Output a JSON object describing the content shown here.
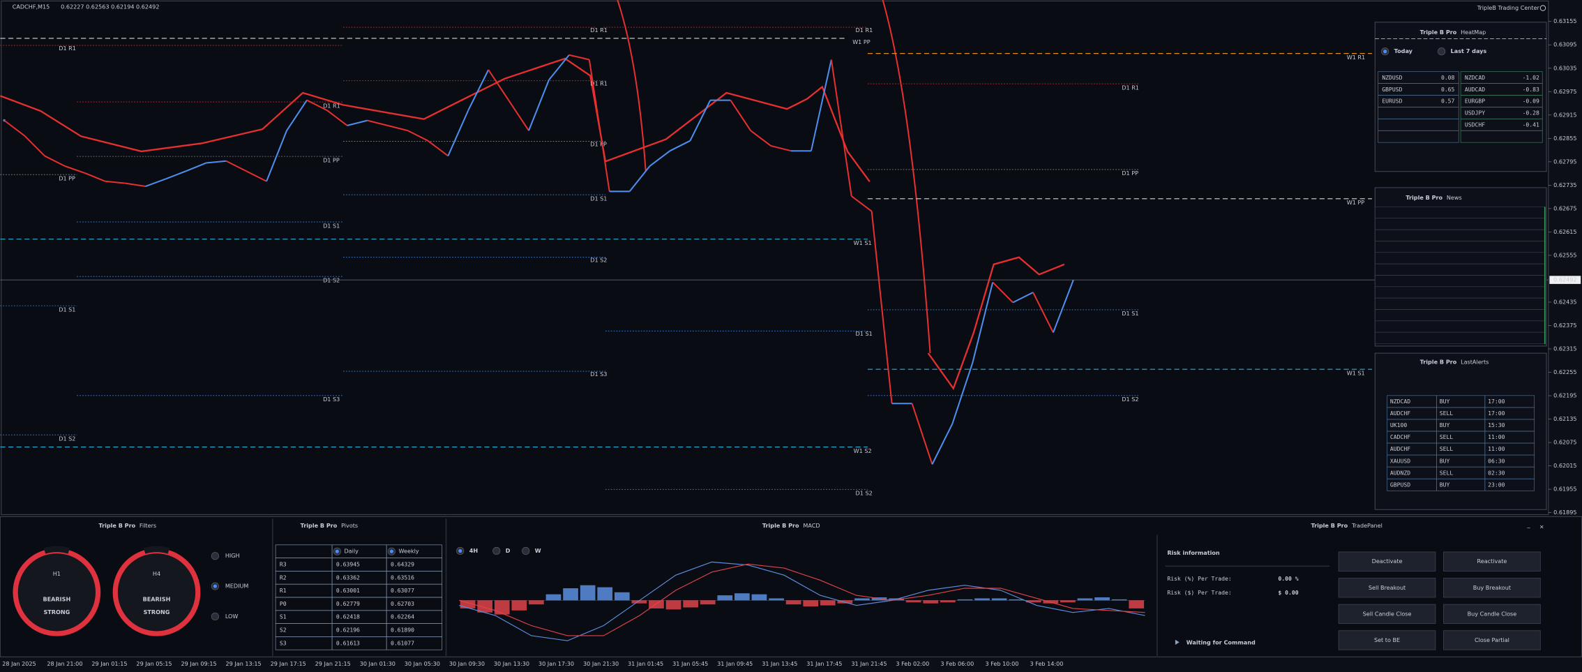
{
  "header": {
    "symbol": "CADCHF,M15",
    "ohlc": "0.62227 0.62563 0.62194 0.62492",
    "broker": "TripleB Trading Center"
  },
  "chart_data": {
    "type": "line",
    "values": [
      0.62901,
      0.62862,
      0.6281,
      0.62784,
      0.62766,
      0.62745,
      0.6274,
      0.62732,
      0.62751,
      0.62771,
      0.62792,
      0.62797,
      0.62771,
      0.62745,
      0.62875,
      0.62953,
      0.62927,
      0.62888,
      0.62901,
      0.62888,
      0.62875,
      0.62849,
      0.6281,
      0.62927,
      0.63031,
      0.62953,
      0.62875,
      0.63005,
      0.63069,
      0.63057,
      0.62719,
      0.62719,
      0.62784,
      0.62823,
      0.62849,
      0.62953,
      0.62953,
      0.62875,
      0.62836,
      0.62823,
      0.62823,
      0.63057,
      0.62707,
      0.62668,
      0.62175,
      0.62175,
      0.62019,
      0.62123,
      0.62279,
      0.62486,
      0.62434,
      0.6246,
      0.62357,
      0.62492
    ],
    "ylim": [
      0.6189,
      0.6321
    ],
    "yticks": [
      0.63155,
      0.63095,
      0.63035,
      0.62975,
      0.62915,
      0.62855,
      0.62795,
      0.62735,
      0.62675,
      0.62615,
      0.62555,
      0.62435,
      0.62375,
      0.62315,
      0.62255,
      0.62195,
      0.62135,
      0.62075,
      0.62015,
      0.61955,
      0.61895
    ],
    "current_price": 0.62492,
    "up_color": "#4d8fef",
    "down_color": "#e5302f",
    "x_labels": [
      "28 Jan 2025",
      "28 Jan 21:00",
      "29 Jan 01:15",
      "29 Jan 05:15",
      "29 Jan 09:15",
      "29 Jan 13:15",
      "29 Jan 17:15",
      "29 Jan 21:15",
      "30 Jan 01:30",
      "30 Jan 05:30",
      "30 Jan 09:30",
      "30 Jan 13:30",
      "30 Jan 17:30",
      "30 Jan 21:30",
      "31 Jan 01:45",
      "31 Jan 05:45",
      "31 Jan 09:45",
      "31 Jan 13:45",
      "31 Jan 17:45",
      "31 Jan 21:45",
      "3 Feb 02:00",
      "3 Feb 06:00",
      "3 Feb 10:00",
      "3 Feb 14:00"
    ],
    "levels": [
      "D1 R1",
      "D1 R1",
      "D1 R1",
      "W1 PP",
      "W1 R1",
      "D1 R1",
      "D1 R1",
      "D1 R1",
      "D1 PP",
      "D1 PP",
      "D1 PP",
      "D1 PP",
      "W1 PP",
      "D1 S1",
      "D1 S1",
      "W1 S1",
      "D1 S2",
      "D1 S2",
      "D1 S1",
      "D1 S1",
      "D1 S1",
      "W1 S1",
      "D1 S3",
      "D1 S3",
      "D1 S2",
      "D1 S2",
      "W1 S2",
      "D1 S2"
    ]
  },
  "heatmap": {
    "brand": "Triple B Pro",
    "title": "HeatMap",
    "options": [
      "Today",
      "Last 7 days"
    ],
    "selected": 0,
    "positive": [
      [
        "NZDUSD",
        "0.08"
      ],
      [
        "GBPUSD",
        "0.65"
      ],
      [
        "EURUSD",
        "0.57"
      ]
    ],
    "negative": [
      [
        "NZDCAD",
        "-1.02"
      ],
      [
        "AUDCAD",
        "-0.83"
      ],
      [
        "EURGBP",
        "-0.09"
      ],
      [
        "USDJPY",
        "-0.28"
      ],
      [
        "USDCHF",
        "-0.41"
      ]
    ]
  },
  "news": {
    "brand": "Triple B Pro",
    "title": "News"
  },
  "alerts": {
    "brand": "Triple B Pro",
    "title": "LastAlerts",
    "rows": [
      [
        "NZDCAD",
        "BUY",
        "17:00"
      ],
      [
        "AUDCHF",
        "SELL",
        "17:00"
      ],
      [
        "UK100",
        "BUY",
        "15:30"
      ],
      [
        "CADCHF",
        "SELL",
        "11:00"
      ],
      [
        "AUDCHF",
        "SELL",
        "11:00"
      ],
      [
        "XAUUSD",
        "BUY",
        "06:30"
      ],
      [
        "AUDNZD",
        "SELL",
        "02:30"
      ],
      [
        "GBPUSD",
        "BUY",
        "23:00"
      ]
    ]
  },
  "filters": {
    "brand": "Triple B Pro",
    "title": "Filters",
    "gauges": [
      {
        "tf": "H1",
        "state": "BEARISH",
        "strength": "STRONG"
      },
      {
        "tf": "H4",
        "state": "BEARISH",
        "strength": "STRONG"
      }
    ],
    "levels": [
      "HIGH",
      "MEDIUM",
      "LOW"
    ],
    "selected": 1
  },
  "pivots": {
    "brand": "Triple B Pro",
    "title": "Pivots",
    "columns": [
      "Daily",
      "Weekly"
    ],
    "rows": [
      [
        "R3",
        "0.63945",
        "0.64329"
      ],
      [
        "R2",
        "0.63362",
        "0.63516"
      ],
      [
        "R1",
        "0.63001",
        "0.63077"
      ],
      [
        "P0",
        "0.62779",
        "0.62703"
      ],
      [
        "S1",
        "0.62418",
        "0.62264"
      ],
      [
        "S2",
        "0.62196",
        "0.61890"
      ],
      [
        "S3",
        "0.61613",
        "0.61077"
      ]
    ]
  },
  "macd": {
    "brand": "Triple B Pro",
    "title": "MACD",
    "timeframes": [
      "4H",
      "D",
      "W"
    ],
    "selected": 0,
    "ylim": [
      -50,
      50
    ],
    "histogram": [
      -8,
      -12,
      -14,
      -10,
      -4,
      6,
      12,
      15,
      13,
      8,
      -3,
      -8,
      -9,
      -7,
      -4,
      5,
      7,
      6,
      2,
      -4,
      -6,
      -5,
      -3,
      2,
      3,
      2,
      -2,
      -3,
      -2,
      1,
      2,
      2,
      1,
      -2,
      -3,
      -2,
      2,
      3,
      1,
      -8
    ],
    "macd": [
      -5,
      -15,
      -35,
      -40,
      -25,
      0,
      25,
      38,
      35,
      25,
      5,
      -5,
      0,
      10,
      15,
      10,
      -5,
      -12,
      -8,
      -15
    ],
    "signal": [
      0,
      -10,
      -25,
      -35,
      -35,
      -15,
      10,
      28,
      36,
      32,
      20,
      5,
      0,
      5,
      12,
      12,
      2,
      -8,
      -10,
      -12
    ]
  },
  "trade": {
    "brand": "Triple B Pro",
    "title": "TradePanel",
    "minimize": "_",
    "close": "×",
    "risk_title": "Risk information",
    "risk_pct_label": "Risk (%) Per Trade:",
    "risk_pct": "0.00 %",
    "risk_usd_label": "Risk ($) Per Trade:",
    "risk_usd": "$ 0.00",
    "status": "Waiting for Command",
    "buttons": [
      "Deactivate",
      "Reactivate",
      "Sell Breakout",
      "Buy Breakout",
      "Sell Candle Close",
      "Buy Candle Close",
      "Set to BE",
      "Close Partial"
    ]
  }
}
